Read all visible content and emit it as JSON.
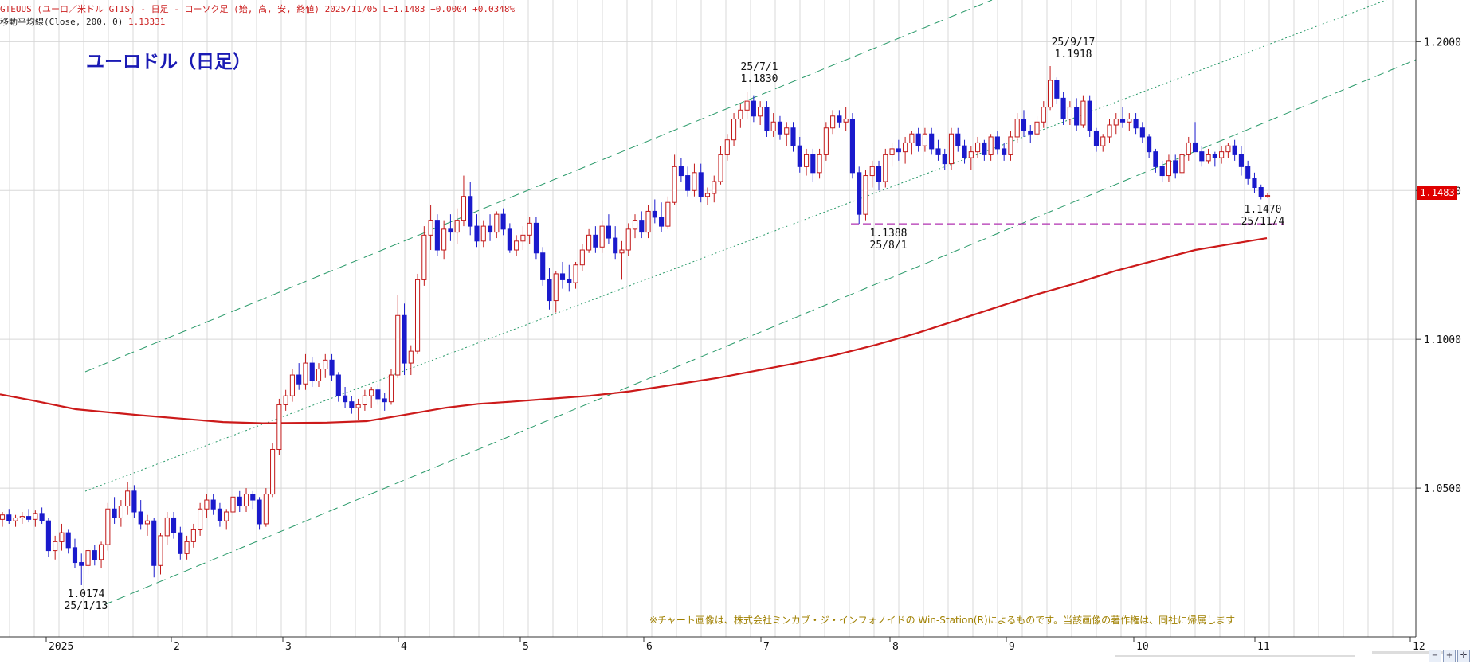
{
  "header": {
    "line1": "GTEUUS (ユーロ／米ドル GTIS) - 日足 - ローソク足 (始, 高, 安, 終値)  2025/11/05  L=1.1483  +0.0004  +0.0348%",
    "line2_label": "移動平均線(Close, 200, 0)",
    "line2_value": "1.13331"
  },
  "title": "ユーロドル（日足）",
  "copyright": "※チャート画像は、株式会社ミンカブ・ジ・インフォノイドの Win-Station(R)によるものです。当該画像の著作権は、同社に帰属します",
  "current_price": "1.1483",
  "annotations": [
    {
      "id": "low-jan",
      "line1": "1.0174",
      "line2": "25/1/13"
    },
    {
      "id": "high-jul",
      "line1": "25/7/1",
      "line2": "1.1830"
    },
    {
      "id": "low-aug",
      "line1": "1.1388",
      "line2": "25/8/1"
    },
    {
      "id": "high-sep",
      "line1": "25/9/17",
      "line2": "1.1918"
    },
    {
      "id": "low-nov",
      "line1": "1.1470",
      "line2": "25/11/4"
    }
  ],
  "chart_data": {
    "type": "candlestick",
    "ylim": [
      1.0,
      1.214
    ],
    "y_ticks": [
      {
        "value": 1.05,
        "label": "1.0500"
      },
      {
        "value": 1.1,
        "label": "1.1000"
      },
      {
        "value": 1.15,
        "label": "1.1500"
      },
      {
        "value": 1.2,
        "label": "1.2000"
      }
    ],
    "x_ticks": [
      "2025",
      "2",
      "3",
      "4",
      "5",
      "6",
      "7",
      "8",
      "9",
      "10",
      "11",
      "12"
    ],
    "colors": {
      "up": "#c21818",
      "down": "#1a1acc",
      "ma": "#cc1a1a",
      "channel": "#2a9a6a",
      "support": "#b030b0",
      "grid": "#d8d8d8"
    },
    "support_level": 1.1388,
    "ma200": [
      [
        0,
        1.0815
      ],
      [
        40,
        1.0795
      ],
      [
        95,
        1.0765
      ],
      [
        175,
        1.0745
      ],
      [
        280,
        1.0722
      ],
      [
        330,
        1.0718
      ],
      [
        410,
        1.072
      ],
      [
        460,
        1.0725
      ],
      [
        490,
        1.0738
      ],
      [
        520,
        1.0752
      ],
      [
        560,
        1.077
      ],
      [
        600,
        1.0783
      ],
      [
        640,
        1.079
      ],
      [
        690,
        1.08
      ],
      [
        740,
        1.081
      ],
      [
        790,
        1.0825
      ],
      [
        840,
        1.0845
      ],
      [
        900,
        1.087
      ],
      [
        950,
        1.0895
      ],
      [
        1000,
        1.092
      ],
      [
        1050,
        1.0948
      ],
      [
        1100,
        1.0982
      ],
      [
        1150,
        1.102
      ],
      [
        1200,
        1.1063
      ],
      [
        1250,
        1.1107
      ],
      [
        1300,
        1.115
      ],
      [
        1350,
        1.1188
      ],
      [
        1400,
        1.123
      ],
      [
        1450,
        1.1265
      ],
      [
        1500,
        1.13
      ],
      [
        1540,
        1.1318
      ],
      [
        1590,
        1.134
      ]
    ],
    "candles_ohlc": [
      [
        1.0395,
        1.042,
        1.037,
        1.041
      ],
      [
        1.041,
        1.043,
        1.038,
        1.039
      ],
      [
        1.039,
        1.041,
        1.037,
        1.04
      ],
      [
        1.04,
        1.042,
        1.038,
        1.0405
      ],
      [
        1.0405,
        1.043,
        1.0385,
        1.0395
      ],
      [
        1.0395,
        1.0425,
        1.037,
        1.0415
      ],
      [
        1.0415,
        1.0435,
        1.038,
        1.039
      ],
      [
        1.039,
        1.04,
        1.027,
        1.029
      ],
      [
        1.029,
        1.034,
        1.026,
        1.032
      ],
      [
        1.032,
        1.038,
        1.029,
        1.035
      ],
      [
        1.035,
        1.036,
        1.028,
        1.03
      ],
      [
        1.03,
        1.033,
        1.023,
        1.025
      ],
      [
        1.025,
        1.028,
        1.0174,
        1.024
      ],
      [
        1.024,
        1.03,
        1.021,
        1.029
      ],
      [
        1.029,
        1.031,
        1.024,
        1.026
      ],
      [
        1.026,
        1.032,
        1.023,
        1.031
      ],
      [
        1.031,
        1.045,
        1.029,
        1.043
      ],
      [
        1.043,
        1.047,
        1.038,
        1.04
      ],
      [
        1.04,
        1.046,
        1.037,
        1.044
      ],
      [
        1.044,
        1.052,
        1.041,
        1.049
      ],
      [
        1.049,
        1.051,
        1.04,
        1.042
      ],
      [
        1.042,
        1.046,
        1.036,
        1.038
      ],
      [
        1.038,
        1.041,
        1.034,
        1.039
      ],
      [
        1.039,
        1.04,
        1.02,
        1.024
      ],
      [
        1.024,
        1.035,
        1.021,
        1.034
      ],
      [
        1.034,
        1.042,
        1.031,
        1.04
      ],
      [
        1.04,
        1.042,
        1.033,
        1.035
      ],
      [
        1.035,
        1.037,
        1.026,
        1.028
      ],
      [
        1.028,
        1.034,
        1.026,
        1.032
      ],
      [
        1.032,
        1.038,
        1.03,
        1.036
      ],
      [
        1.036,
        1.045,
        1.034,
        1.043
      ],
      [
        1.043,
        1.048,
        1.04,
        1.046
      ],
      [
        1.046,
        1.048,
        1.041,
        1.043
      ],
      [
        1.043,
        1.045,
        1.037,
        1.039
      ],
      [
        1.039,
        1.043,
        1.036,
        1.042
      ],
      [
        1.042,
        1.048,
        1.04,
        1.047
      ],
      [
        1.047,
        1.049,
        1.042,
        1.044
      ],
      [
        1.044,
        1.05,
        1.042,
        1.048
      ],
      [
        1.048,
        1.049,
        1.043,
        1.046
      ],
      [
        1.046,
        1.047,
        1.036,
        1.038
      ],
      [
        1.038,
        1.05,
        1.037,
        1.048
      ],
      [
        1.048,
        1.065,
        1.047,
        1.063
      ],
      [
        1.063,
        1.08,
        1.061,
        1.078
      ],
      [
        1.078,
        1.083,
        1.076,
        1.081
      ],
      [
        1.081,
        1.09,
        1.079,
        1.088
      ],
      [
        1.088,
        1.092,
        1.083,
        1.085
      ],
      [
        1.085,
        1.095,
        1.083,
        1.092
      ],
      [
        1.092,
        1.094,
        1.084,
        1.086
      ],
      [
        1.086,
        1.092,
        1.084,
        1.09
      ],
      [
        1.09,
        1.095,
        1.087,
        1.093
      ],
      [
        1.093,
        1.095,
        1.086,
        1.088
      ],
      [
        1.088,
        1.089,
        1.079,
        1.081
      ],
      [
        1.081,
        1.084,
        1.077,
        1.079
      ],
      [
        1.079,
        1.081,
        1.075,
        1.077
      ],
      [
        1.077,
        1.08,
        1.073,
        1.078
      ],
      [
        1.078,
        1.083,
        1.076,
        1.081
      ],
      [
        1.081,
        1.084,
        1.077,
        1.083
      ],
      [
        1.083,
        1.085,
        1.078,
        1.08
      ],
      [
        1.08,
        1.082,
        1.076,
        1.079
      ],
      [
        1.079,
        1.09,
        1.078,
        1.088
      ],
      [
        1.088,
        1.115,
        1.087,
        1.108
      ],
      [
        1.108,
        1.112,
        1.088,
        1.092
      ],
      [
        1.092,
        1.098,
        1.088,
        1.096
      ],
      [
        1.096,
        1.122,
        1.095,
        1.12
      ],
      [
        1.12,
        1.138,
        1.118,
        1.135
      ],
      [
        1.135,
        1.145,
        1.13,
        1.14
      ],
      [
        1.14,
        1.142,
        1.128,
        1.13
      ],
      [
        1.13,
        1.14,
        1.127,
        1.137
      ],
      [
        1.137,
        1.142,
        1.133,
        1.136
      ],
      [
        1.136,
        1.144,
        1.132,
        1.14
      ],
      [
        1.14,
        1.155,
        1.138,
        1.148
      ],
      [
        1.148,
        1.153,
        1.135,
        1.138
      ],
      [
        1.138,
        1.142,
        1.131,
        1.133
      ],
      [
        1.133,
        1.14,
        1.131,
        1.138
      ],
      [
        1.138,
        1.142,
        1.133,
        1.136
      ],
      [
        1.136,
        1.143,
        1.134,
        1.142
      ],
      [
        1.142,
        1.144,
        1.135,
        1.137
      ],
      [
        1.137,
        1.139,
        1.129,
        1.13
      ],
      [
        1.13,
        1.135,
        1.128,
        1.133
      ],
      [
        1.133,
        1.138,
        1.13,
        1.135
      ],
      [
        1.135,
        1.141,
        1.132,
        1.139
      ],
      [
        1.139,
        1.141,
        1.127,
        1.129
      ],
      [
        1.129,
        1.131,
        1.118,
        1.12
      ],
      [
        1.12,
        1.124,
        1.11,
        1.113
      ],
      [
        1.113,
        1.123,
        1.109,
        1.122
      ],
      [
        1.122,
        1.126,
        1.117,
        1.12
      ],
      [
        1.12,
        1.125,
        1.116,
        1.119
      ],
      [
        1.119,
        1.126,
        1.117,
        1.125
      ],
      [
        1.125,
        1.132,
        1.123,
        1.13
      ],
      [
        1.13,
        1.137,
        1.129,
        1.135
      ],
      [
        1.135,
        1.138,
        1.129,
        1.131
      ],
      [
        1.131,
        1.14,
        1.129,
        1.138
      ],
      [
        1.138,
        1.142,
        1.132,
        1.134
      ],
      [
        1.134,
        1.138,
        1.127,
        1.129
      ],
      [
        1.129,
        1.133,
        1.12,
        1.13
      ],
      [
        1.13,
        1.139,
        1.128,
        1.137
      ],
      [
        1.137,
        1.142,
        1.134,
        1.14
      ],
      [
        1.14,
        1.143,
        1.134,
        1.136
      ],
      [
        1.136,
        1.145,
        1.134,
        1.143
      ],
      [
        1.143,
        1.147,
        1.139,
        1.141
      ],
      [
        1.141,
        1.146,
        1.136,
        1.138
      ],
      [
        1.138,
        1.148,
        1.137,
        1.146
      ],
      [
        1.146,
        1.162,
        1.145,
        1.158
      ],
      [
        1.158,
        1.161,
        1.153,
        1.155
      ],
      [
        1.155,
        1.158,
        1.148,
        1.15
      ],
      [
        1.15,
        1.159,
        1.148,
        1.156
      ],
      [
        1.156,
        1.159,
        1.146,
        1.148
      ],
      [
        1.148,
        1.151,
        1.145,
        1.149
      ],
      [
        1.149,
        1.155,
        1.146,
        1.153
      ],
      [
        1.153,
        1.165,
        1.152,
        1.162
      ],
      [
        1.162,
        1.169,
        1.16,
        1.167
      ],
      [
        1.167,
        1.176,
        1.165,
        1.174
      ],
      [
        1.174,
        1.179,
        1.171,
        1.177
      ],
      [
        1.177,
        1.183,
        1.174,
        1.18
      ],
      [
        1.18,
        1.182,
        1.173,
        1.175
      ],
      [
        1.175,
        1.18,
        1.172,
        1.178
      ],
      [
        1.178,
        1.18,
        1.168,
        1.17
      ],
      [
        1.17,
        1.176,
        1.168,
        1.173
      ],
      [
        1.173,
        1.175,
        1.167,
        1.169
      ],
      [
        1.169,
        1.173,
        1.165,
        1.171
      ],
      [
        1.171,
        1.173,
        1.163,
        1.165
      ],
      [
        1.165,
        1.168,
        1.156,
        1.158
      ],
      [
        1.158,
        1.164,
        1.155,
        1.162
      ],
      [
        1.162,
        1.164,
        1.153,
        1.156
      ],
      [
        1.156,
        1.164,
        1.154,
        1.162
      ],
      [
        1.162,
        1.173,
        1.16,
        1.171
      ],
      [
        1.171,
        1.177,
        1.169,
        1.175
      ],
      [
        1.175,
        1.177,
        1.171,
        1.173
      ],
      [
        1.173,
        1.178,
        1.17,
        1.174
      ],
      [
        1.174,
        1.176,
        1.154,
        1.156
      ],
      [
        1.156,
        1.158,
        1.1388,
        1.142
      ],
      [
        1.142,
        1.157,
        1.14,
        1.155
      ],
      [
        1.155,
        1.16,
        1.151,
        1.158
      ],
      [
        1.158,
        1.16,
        1.15,
        1.153
      ],
      [
        1.153,
        1.164,
        1.151,
        1.162
      ],
      [
        1.162,
        1.166,
        1.158,
        1.164
      ],
      [
        1.164,
        1.167,
        1.16,
        1.163
      ],
      [
        1.163,
        1.168,
        1.159,
        1.166
      ],
      [
        1.166,
        1.17,
        1.162,
        1.169
      ],
      [
        1.169,
        1.171,
        1.163,
        1.165
      ],
      [
        1.165,
        1.171,
        1.163,
        1.169
      ],
      [
        1.169,
        1.171,
        1.162,
        1.164
      ],
      [
        1.164,
        1.167,
        1.16,
        1.162
      ],
      [
        1.162,
        1.164,
        1.157,
        1.159
      ],
      [
        1.159,
        1.171,
        1.157,
        1.169
      ],
      [
        1.169,
        1.171,
        1.163,
        1.165
      ],
      [
        1.165,
        1.167,
        1.159,
        1.161
      ],
      [
        1.161,
        1.165,
        1.157,
        1.163
      ],
      [
        1.163,
        1.168,
        1.161,
        1.166
      ],
      [
        1.166,
        1.167,
        1.16,
        1.162
      ],
      [
        1.162,
        1.169,
        1.16,
        1.168
      ],
      [
        1.168,
        1.17,
        1.162,
        1.164
      ],
      [
        1.164,
        1.166,
        1.16,
        1.162
      ],
      [
        1.162,
        1.17,
        1.16,
        1.168
      ],
      [
        1.168,
        1.176,
        1.166,
        1.174
      ],
      [
        1.174,
        1.177,
        1.168,
        1.17
      ],
      [
        1.17,
        1.172,
        1.166,
        1.169
      ],
      [
        1.169,
        1.175,
        1.167,
        1.173
      ],
      [
        1.173,
        1.18,
        1.171,
        1.178
      ],
      [
        1.178,
        1.1918,
        1.177,
        1.187
      ],
      [
        1.187,
        1.188,
        1.179,
        1.181
      ],
      [
        1.181,
        1.183,
        1.172,
        1.174
      ],
      [
        1.174,
        1.18,
        1.172,
        1.178
      ],
      [
        1.178,
        1.181,
        1.17,
        1.172
      ],
      [
        1.172,
        1.182,
        1.171,
        1.18
      ],
      [
        1.18,
        1.182,
        1.168,
        1.17
      ],
      [
        1.17,
        1.171,
        1.163,
        1.165
      ],
      [
        1.165,
        1.169,
        1.163,
        1.168
      ],
      [
        1.168,
        1.174,
        1.166,
        1.172
      ],
      [
        1.172,
        1.176,
        1.169,
        1.174
      ],
      [
        1.174,
        1.178,
        1.171,
        1.173
      ],
      [
        1.173,
        1.176,
        1.17,
        1.174
      ],
      [
        1.174,
        1.176,
        1.169,
        1.171
      ],
      [
        1.171,
        1.173,
        1.166,
        1.168
      ],
      [
        1.168,
        1.169,
        1.161,
        1.163
      ],
      [
        1.163,
        1.164,
        1.156,
        1.158
      ],
      [
        1.158,
        1.16,
        1.153,
        1.155
      ],
      [
        1.155,
        1.162,
        1.153,
        1.16
      ],
      [
        1.16,
        1.162,
        1.154,
        1.156
      ],
      [
        1.156,
        1.164,
        1.154,
        1.162
      ],
      [
        1.162,
        1.168,
        1.16,
        1.166
      ],
      [
        1.166,
        1.173,
        1.164,
        1.163
      ],
      [
        1.163,
        1.165,
        1.158,
        1.16
      ],
      [
        1.16,
        1.164,
        1.159,
        1.162
      ],
      [
        1.162,
        1.163,
        1.158,
        1.161
      ],
      [
        1.161,
        1.165,
        1.159,
        1.163
      ],
      [
        1.163,
        1.166,
        1.161,
        1.165
      ],
      [
        1.165,
        1.167,
        1.16,
        1.162
      ],
      [
        1.162,
        1.165,
        1.155,
        1.158
      ],
      [
        1.158,
        1.16,
        1.152,
        1.154
      ],
      [
        1.154,
        1.156,
        1.149,
        1.151
      ],
      [
        1.151,
        1.152,
        1.147,
        1.148
      ],
      [
        1.148,
        1.149,
        1.1475,
        1.1483
      ]
    ]
  }
}
